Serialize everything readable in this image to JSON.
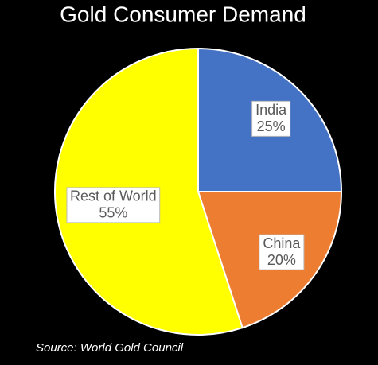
{
  "chart_data": {
    "type": "pie",
    "title": "Gold Consumer Demand",
    "categories": [
      "India",
      "China",
      "Rest of World"
    ],
    "values": [
      25,
      20,
      55
    ],
    "value_labels": [
      "25%",
      "20%",
      "55%"
    ],
    "colors": [
      "#4472c4",
      "#ed7d31",
      "#ffff00"
    ],
    "source": "Source: World Gold Council"
  }
}
